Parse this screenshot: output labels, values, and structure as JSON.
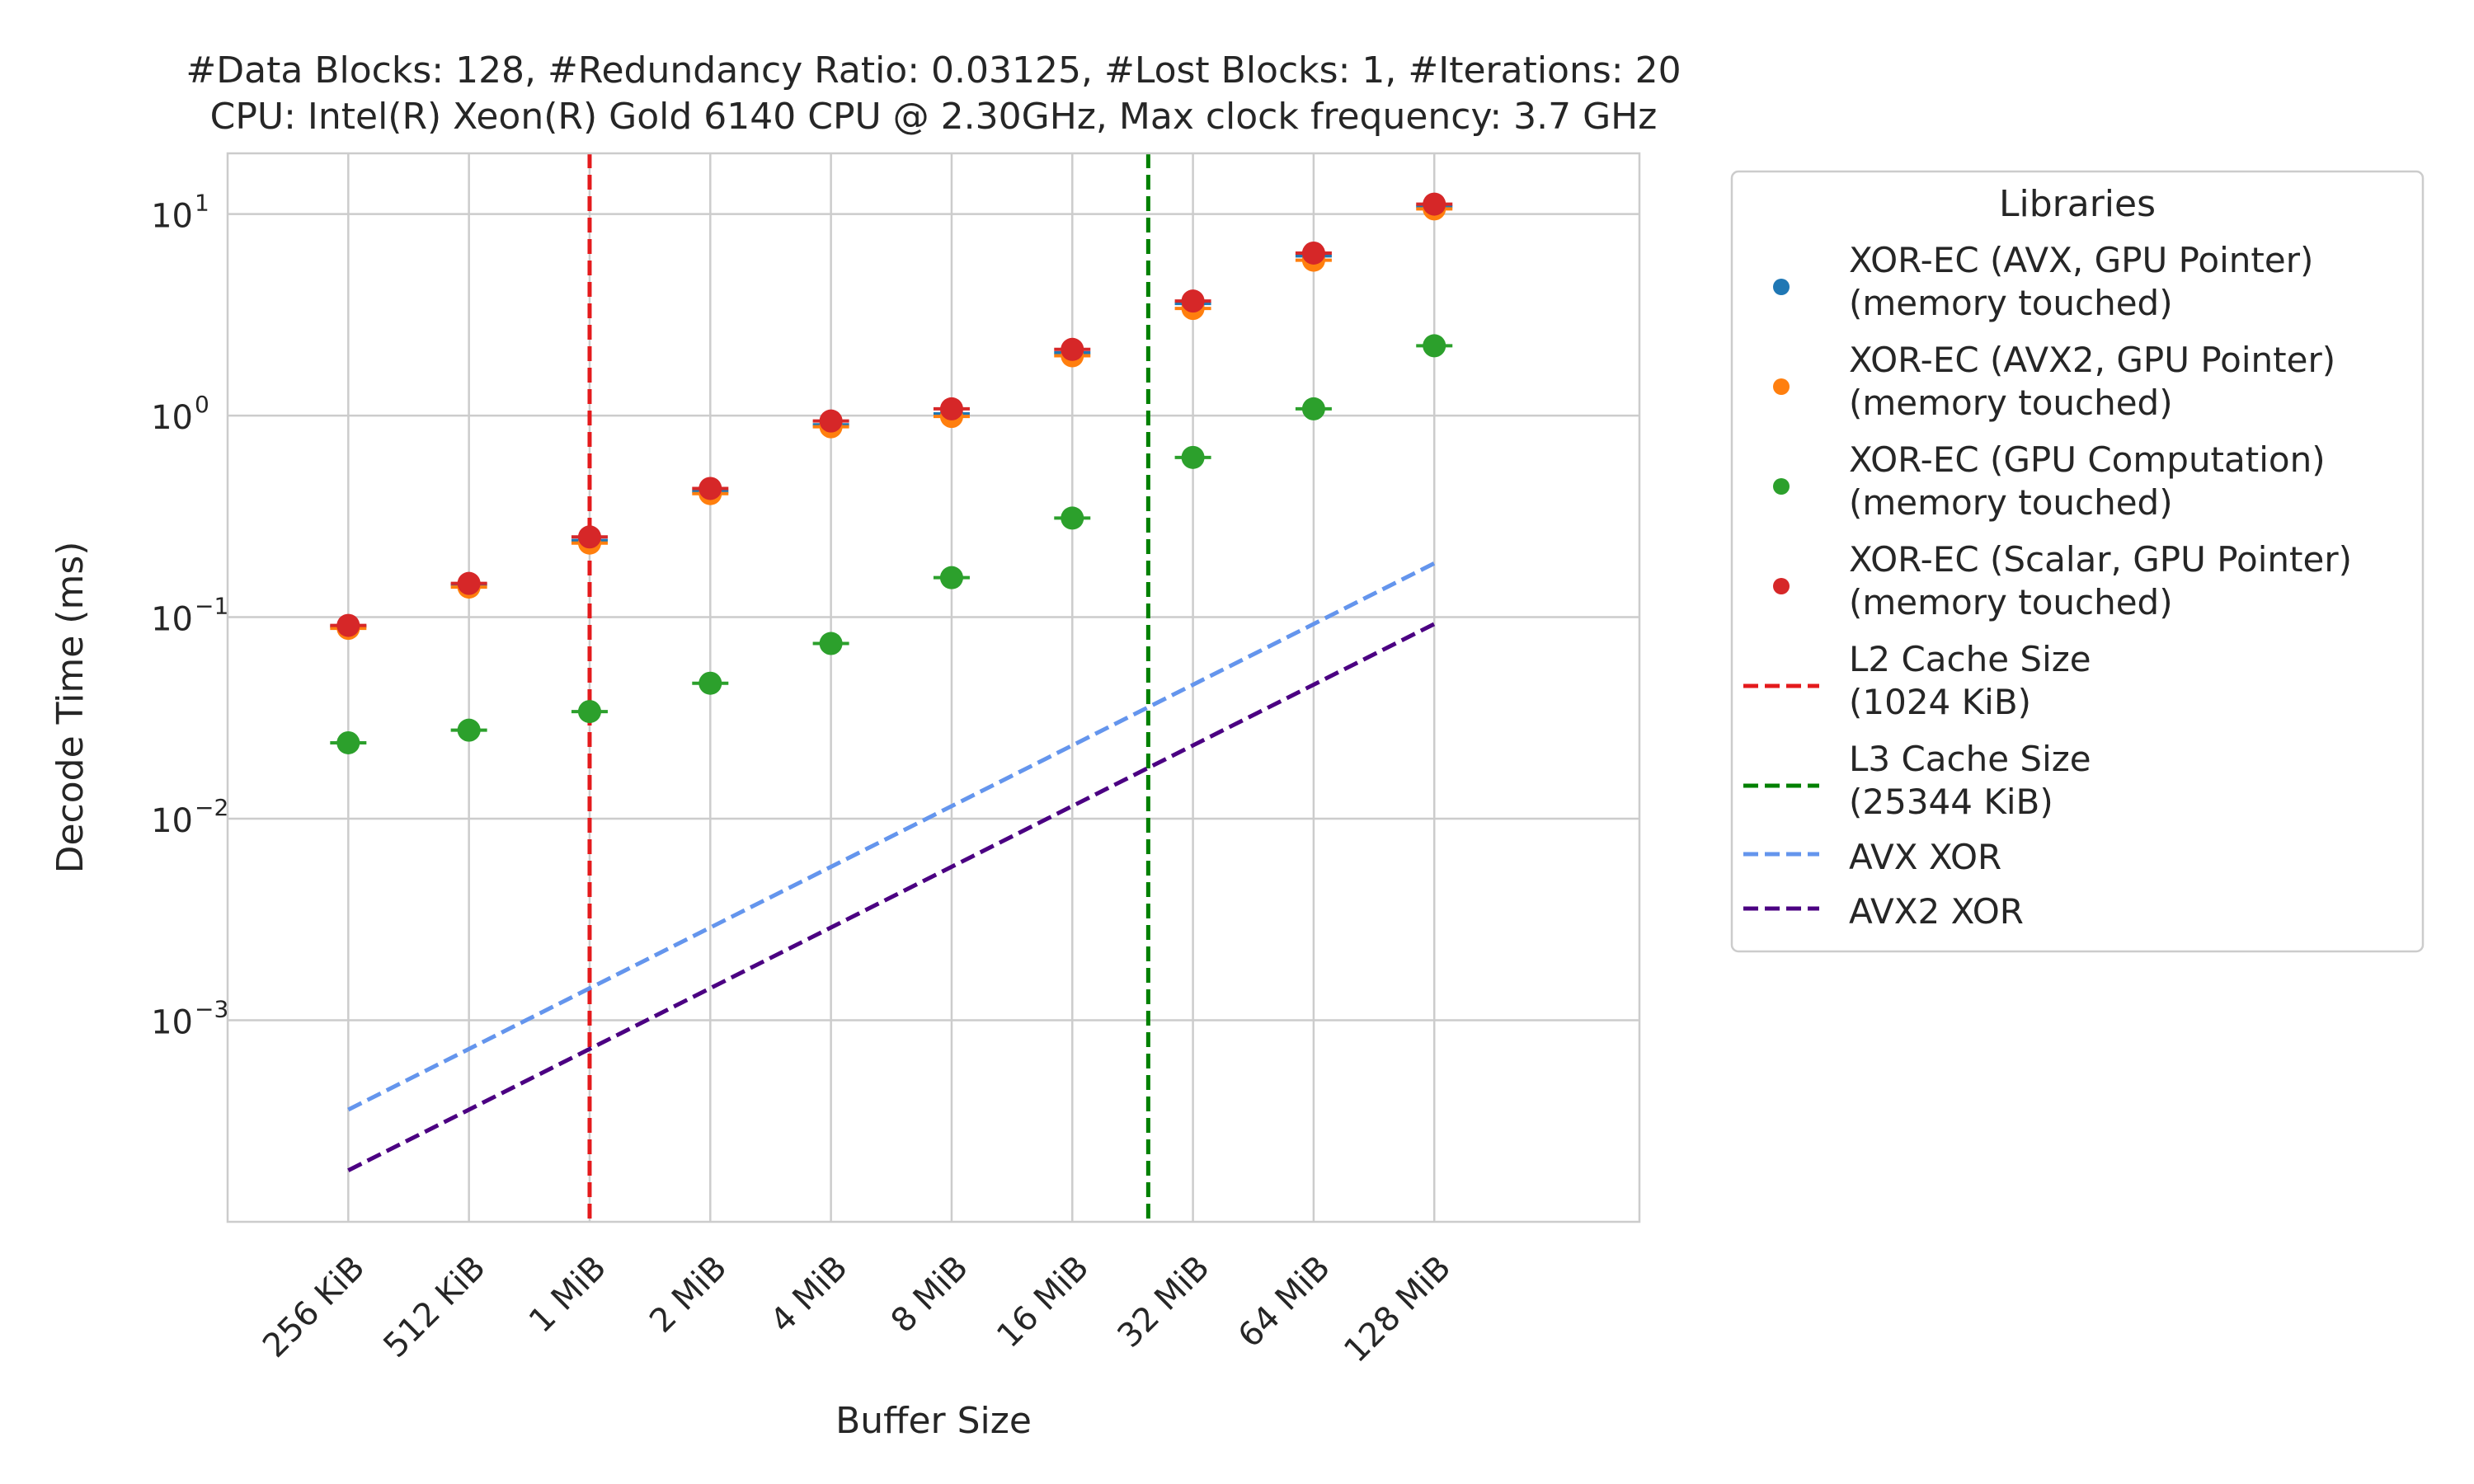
{
  "chart_data": {
    "type": "scatter",
    "title_lines": [
      "#Data Blocks: 128, #Redundancy Ratio: 0.03125, #Lost Blocks: 1, #Iterations: 20",
      "CPU: Intel(R) Xeon(R) Gold 6140 CPU @ 2.30GHz, Max clock frequency: 3.7 GHz"
    ],
    "xlabel": "Buffer Size",
    "ylabel": "Decode Time (ms)",
    "yscale": "log",
    "ylim": [
      0.0001,
      20
    ],
    "x_log2_range": [
      17,
      28.7
    ],
    "categories": [
      "256 KiB",
      "512 KiB",
      "1 MiB",
      "2 MiB",
      "4 MiB",
      "8 MiB",
      "16 MiB",
      "32 MiB",
      "64 MiB",
      "128 MiB"
    ],
    "x_bytes": [
      262144,
      524288,
      1048576,
      2097152,
      4194304,
      8388608,
      16777216,
      33554432,
      67108864,
      134217728
    ],
    "y_ticks": [
      {
        "value": 0.001,
        "label": "10",
        "exp": "−3"
      },
      {
        "value": 0.01,
        "label": "10",
        "exp": "−2"
      },
      {
        "value": 0.1,
        "label": "10",
        "exp": "−1"
      },
      {
        "value": 1,
        "label": "10",
        "exp": "0"
      },
      {
        "value": 10,
        "label": "10",
        "exp": "1"
      }
    ],
    "grid": true,
    "legend_title": "Libraries",
    "legend_position": "outside-right",
    "series": [
      {
        "key": "avx",
        "name_lines": [
          "XOR-EC (AVX, GPU Pointer)",
          "(memory touched)"
        ],
        "color": "#1f77b4",
        "marker": "point",
        "values": [
          0.09,
          0.145,
          0.24,
          0.42,
          0.9,
          1.02,
          2.05,
          3.6,
          6.2,
          10.9
        ]
      },
      {
        "key": "avx2",
        "name_lines": [
          "XOR-EC (AVX2, GPU Pointer)",
          "(memory touched)"
        ],
        "color": "#ff7f0e",
        "marker": "point",
        "values": [
          0.088,
          0.141,
          0.233,
          0.41,
          0.88,
          0.99,
          1.98,
          3.4,
          5.9,
          10.6
        ]
      },
      {
        "key": "gpu",
        "name_lines": [
          "XOR-EC (GPU Computation)",
          "(memory touched)"
        ],
        "color": "#2ca02c",
        "marker": "point",
        "values": [
          0.0238,
          0.0275,
          0.034,
          0.047,
          0.074,
          0.157,
          0.31,
          0.62,
          1.08,
          2.22
        ]
      },
      {
        "key": "scalar",
        "name_lines": [
          "XOR-EC (Scalar, GPU Pointer)",
          "(memory touched)"
        ],
        "color": "#d62728",
        "marker": "point",
        "values": [
          0.091,
          0.147,
          0.25,
          0.435,
          0.94,
          1.08,
          2.13,
          3.7,
          6.4,
          11.2
        ]
      },
      {
        "key": "l2",
        "name_lines": [
          "L2 Cache Size",
          "(1024 KiB)"
        ],
        "color": "#e41a1c",
        "marker": "vline",
        "x_kib": 1024
      },
      {
        "key": "l3",
        "name_lines": [
          "L3 Cache Size",
          "(25344 KiB)"
        ],
        "color": "#008000",
        "marker": "vline",
        "x_kib": 25344
      },
      {
        "key": "avxxor",
        "name_lines": [
          "AVX XOR"
        ],
        "color": "#6495ed",
        "marker": "dashed-line",
        "points": [
          [
            262144,
            0.00036
          ],
          [
            134217728,
            0.185
          ]
        ]
      },
      {
        "key": "avx2xor",
        "name_lines": [
          "AVX2 XOR"
        ],
        "color": "#4b0082",
        "marker": "dashed-line",
        "points": [
          [
            262144,
            0.00018
          ],
          [
            134217728,
            0.0925
          ]
        ]
      }
    ]
  }
}
